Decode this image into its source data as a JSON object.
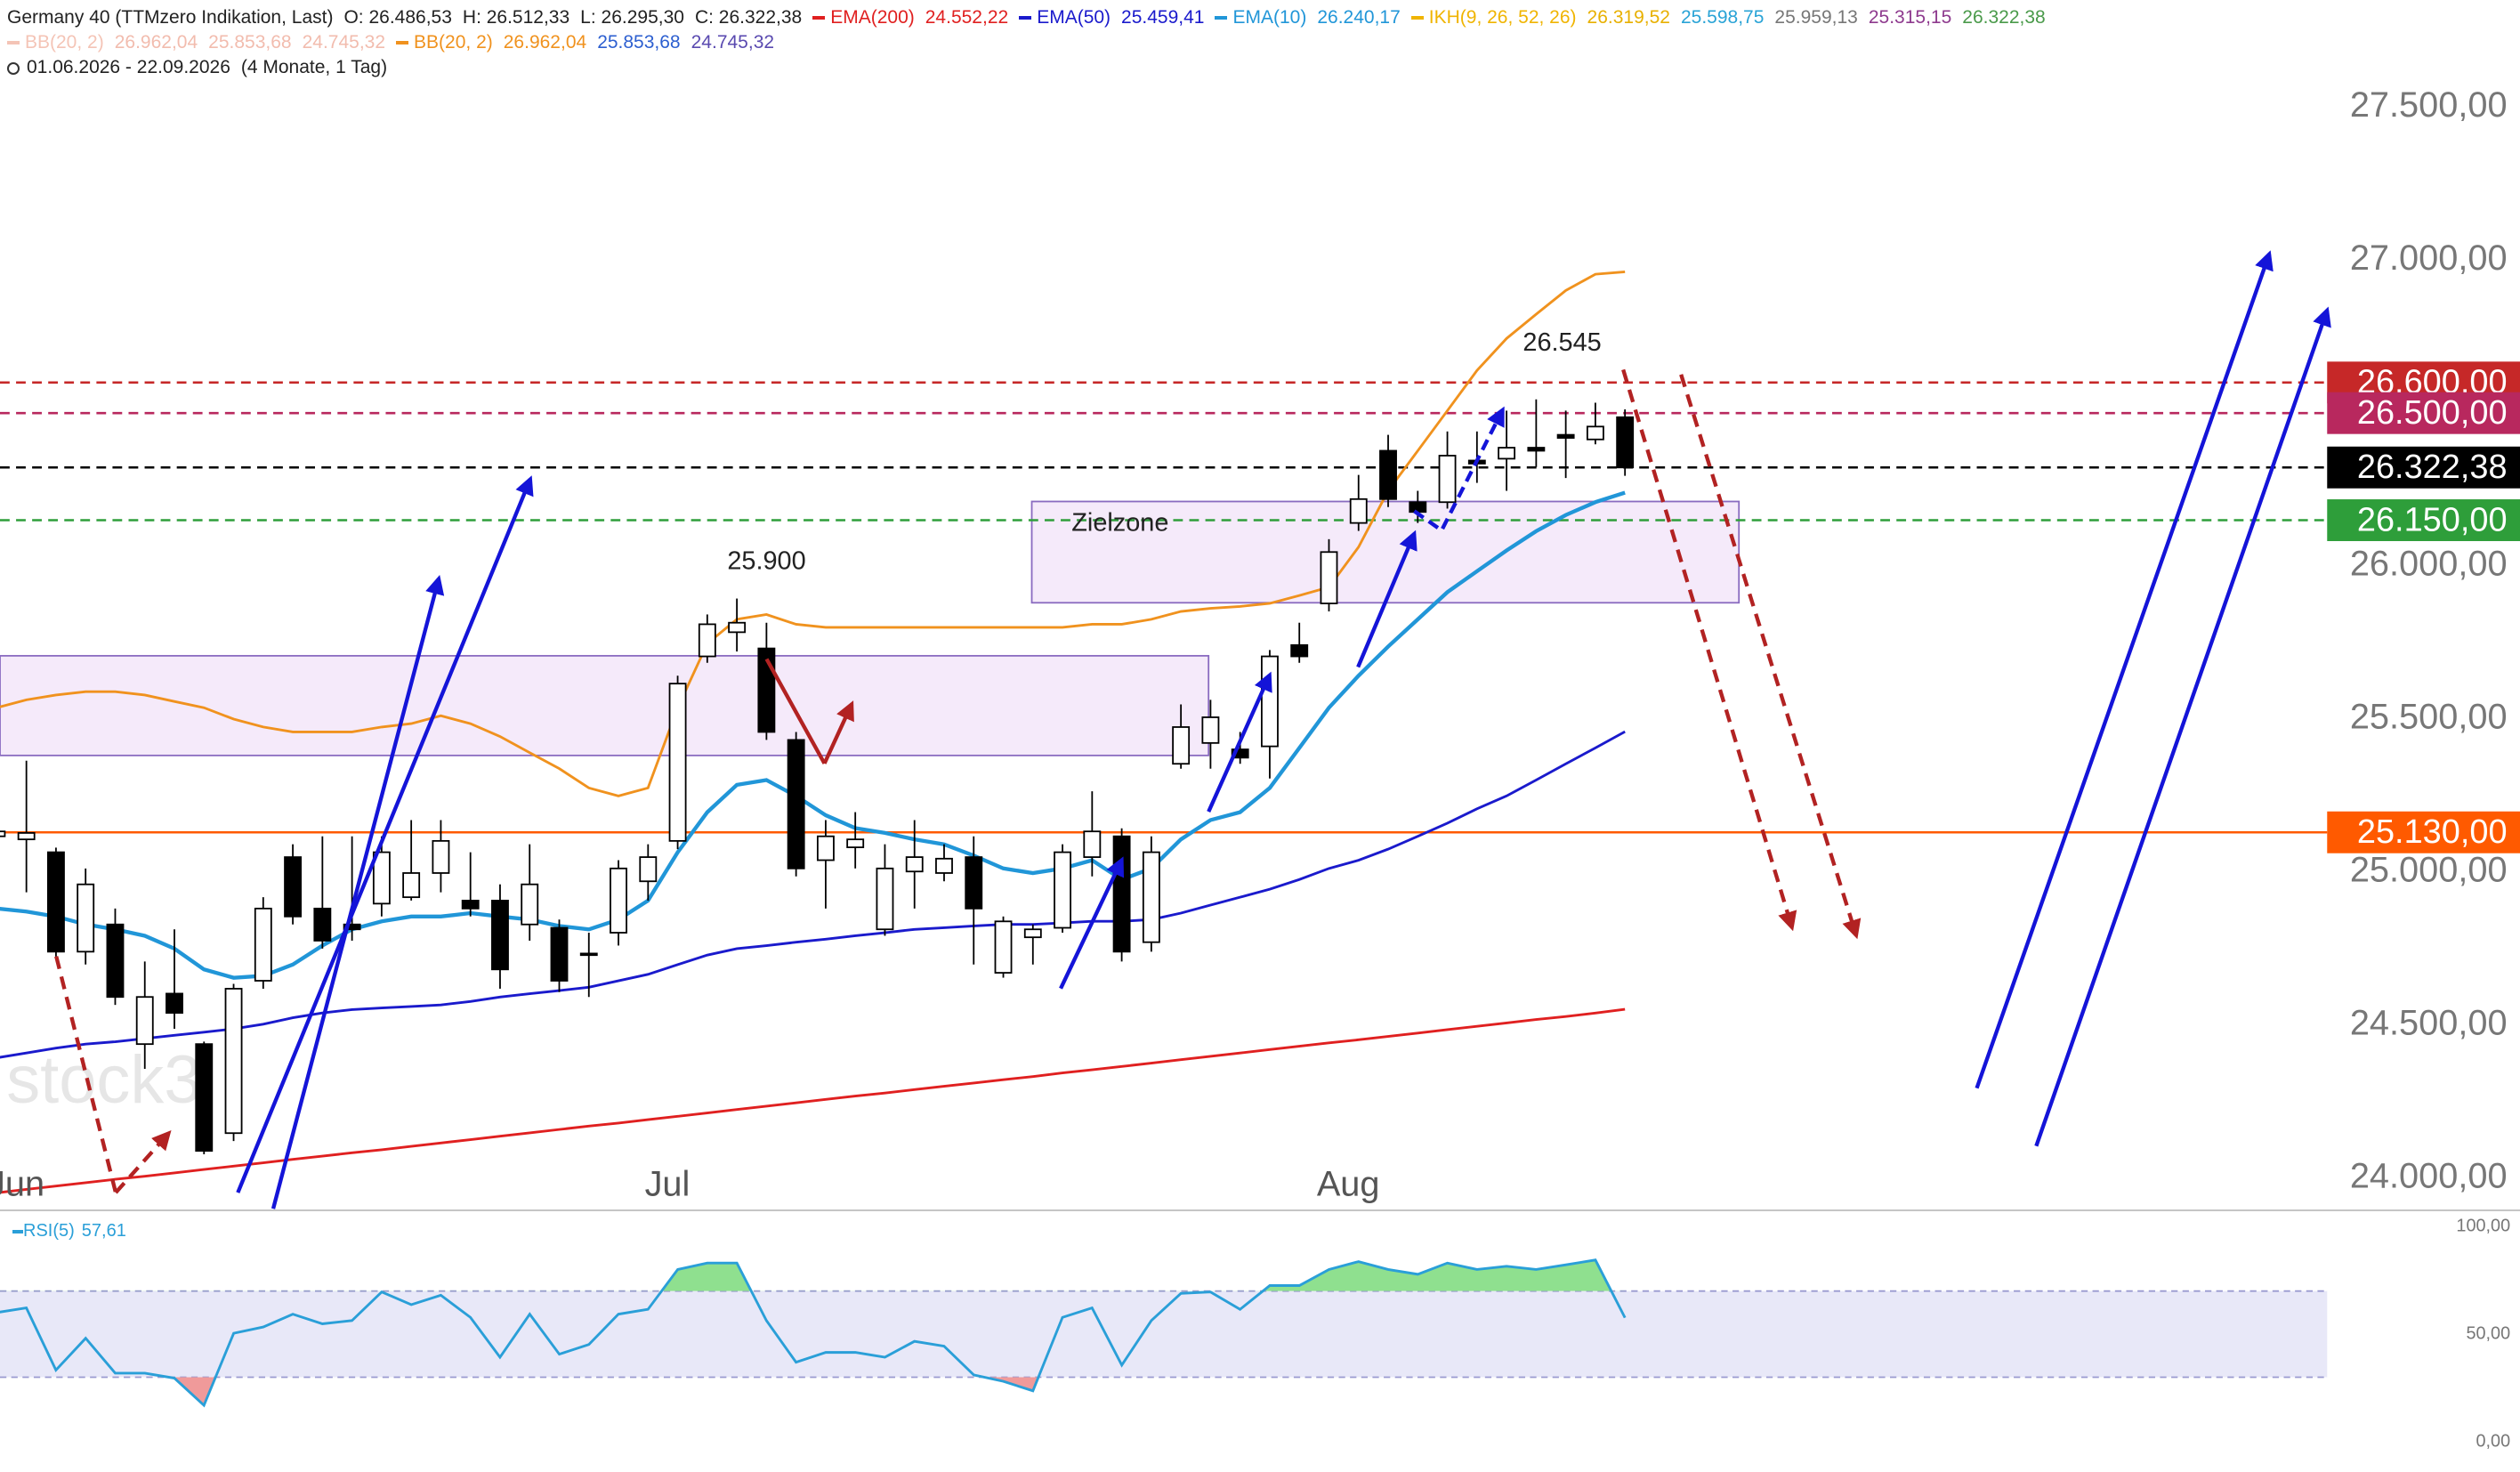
{
  "chart_data": [
    {
      "type": "candlestick",
      "title": "Germany 40 (TTMzero Indikation, Last)",
      "ohlc_labels": [
        "O: 26.486,53",
        "H: 26.512,33",
        "L: 26.295,30",
        "C: 26.322,38"
      ],
      "date_range": "01.06.2026 - 22.09.2026",
      "period": "(4 Monate, 1 Tag)",
      "watermark": "stock3",
      "categories": [
        "Jun",
        null,
        null,
        null,
        null,
        null,
        null,
        null,
        null,
        null,
        null,
        null,
        null,
        null,
        null,
        null,
        null,
        null,
        null,
        null,
        null,
        null,
        "Jul",
        null,
        null,
        null,
        null,
        null,
        null,
        null,
        null,
        null,
        null,
        null,
        null,
        null,
        null,
        null,
        null,
        null,
        null,
        null,
        null,
        null,
        null,
        "Aug",
        null,
        null,
        null,
        null,
        null,
        null,
        null,
        null,
        null,
        null
      ],
      "open": [
        25117,
        25107,
        25065,
        24740,
        24829,
        24438,
        24603,
        24438,
        24147,
        24645,
        25049,
        24881,
        24829,
        24897,
        24918,
        24997,
        24907,
        24907,
        24829,
        24818,
        24734,
        24802,
        24970,
        25102,
        25705,
        25784,
        25731,
        25432,
        25039,
        25081,
        24813,
        25002,
        24997,
        25049,
        24671,
        24787,
        24818,
        25049,
        25117,
        24771,
        25354,
        25422,
        25401,
        25411,
        25742,
        25878,
        26141,
        26377,
        26209,
        26209,
        26345,
        26351,
        26387,
        26429,
        26414,
        26486.53
      ],
      "high": [
        25301,
        25364,
        25080,
        25012,
        24881,
        24708,
        24813,
        24446,
        24635,
        24918,
        25091,
        25117,
        25117,
        25117,
        25170,
        25170,
        25065,
        24960,
        25091,
        24845,
        24802,
        25039,
        25091,
        25642,
        25842,
        25894,
        25815,
        25458,
        25170,
        25196,
        25091,
        25170,
        25091,
        25117,
        24855,
        24829,
        25091,
        25264,
        25143,
        25117,
        25548,
        25563,
        25458,
        25726,
        25815,
        26088,
        26298,
        26429,
        26246,
        26440,
        26440,
        26508,
        26545,
        26508,
        26534,
        26512.33
      ],
      "low": [
        25065,
        24934,
        24724,
        24698,
        24566,
        24357,
        24488,
        24078,
        24121,
        24619,
        24829,
        24750,
        24776,
        24855,
        24907,
        24934,
        24855,
        24619,
        24776,
        24608,
        24592,
        24760,
        24907,
        25075,
        25684,
        25721,
        25432,
        24986,
        24881,
        25012,
        24792,
        24881,
        24970,
        24698,
        24655,
        24698,
        24802,
        24986,
        24708,
        24740,
        25338,
        25338,
        25354,
        25306,
        25684,
        25852,
        26115,
        26193,
        26141,
        26188,
        26272,
        26246,
        26324,
        26288,
        26398,
        26295.3
      ],
      "close": [
        25133,
        25128,
        24740,
        24960,
        24592,
        24592,
        24540,
        24089,
        24619,
        24881,
        24855,
        24776,
        24813,
        25065,
        24997,
        25102,
        24881,
        24682,
        24960,
        24645,
        24729,
        25012,
        25049,
        25616,
        25810,
        25815,
        25458,
        25012,
        25117,
        25107,
        25012,
        25049,
        25044,
        24881,
        24839,
        24813,
        25065,
        25133,
        24740,
        25065,
        25474,
        25506,
        25374,
        25705,
        25705,
        26046,
        26219,
        26219,
        26177,
        26361,
        26335,
        26387,
        26377,
        26419,
        26456,
        26322.38
      ],
      "up_color": "#ffffff",
      "down_color": "#000000",
      "series": [
        {
          "name": "EMA(200)",
          "color": "#e02020",
          "legend_labels": [
            "24.552,22"
          ],
          "legend_label_colors": [
            "#e02020"
          ],
          "values": [
            23952,
            23963,
            23974,
            23985,
            23996,
            24006,
            24017,
            24028,
            24039,
            24050,
            24061,
            24072,
            24083,
            24093,
            24104,
            24115,
            24126,
            24137,
            24148,
            24159,
            24170,
            24180,
            24191,
            24202,
            24213,
            24224,
            24235,
            24246,
            24257,
            24268,
            24278,
            24289,
            24300,
            24311,
            24322,
            24332,
            24344,
            24354,
            24365,
            24376,
            24387,
            24398,
            24409,
            24420,
            24431,
            24442,
            24452,
            24463,
            24474,
            24485,
            24496,
            24507,
            24518,
            24528,
            24539,
            24552
          ]
        },
        {
          "name": "EMA(50)",
          "color": "#1a1acc",
          "legend_labels": [
            "25.459,41"
          ],
          "legend_label_colors": [
            "#1a1acc"
          ],
          "values": [
            24393,
            24409,
            24425,
            24438,
            24446,
            24456,
            24467,
            24477,
            24488,
            24503,
            24524,
            24540,
            24551,
            24556,
            24561,
            24566,
            24577,
            24592,
            24603,
            24613,
            24624,
            24645,
            24666,
            24698,
            24729,
            24750,
            24760,
            24771,
            24781,
            24792,
            24802,
            24813,
            24818,
            24824,
            24829,
            24829,
            24834,
            24839,
            24839,
            24845,
            24866,
            24892,
            24918,
            24944,
            24976,
            25012,
            25039,
            25075,
            25117,
            25160,
            25207,
            25249,
            25301,
            25354,
            25406,
            25459
          ]
        },
        {
          "name": "EMA(10)",
          "color": "#2196d8",
          "legend_labels": [
            "26.240,17"
          ],
          "legend_label_colors": [
            "#2196d8"
          ],
          "values": [
            24881,
            24871,
            24855,
            24829,
            24813,
            24792,
            24750,
            24682,
            24655,
            24661,
            24698,
            24760,
            24813,
            24839,
            24855,
            24855,
            24866,
            24855,
            24845,
            24824,
            24813,
            24845,
            24907,
            25065,
            25196,
            25285,
            25301,
            25249,
            25186,
            25144,
            25128,
            25107,
            25091,
            25054,
            25012,
            24997,
            25012,
            25039,
            24976,
            25012,
            25107,
            25170,
            25196,
            25275,
            25406,
            25537,
            25642,
            25737,
            25826,
            25915,
            25983,
            26051,
            26114,
            26167,
            26209,
            26240
          ]
        },
        {
          "name": "BB(20, 2)",
          "color": "#f0921e",
          "legend_labels": [
            "26.962,04",
            "25.853,68",
            "24.745,32"
          ],
          "legend_label_colors": [
            "#f0921e",
            "#2d5fd0",
            "#5a4ab0"
          ],
          "values": [
            25537,
            25563,
            25579,
            25590,
            25590,
            25579,
            25558,
            25537,
            25500,
            25474,
            25458,
            25458,
            25458,
            25474,
            25485,
            25511,
            25485,
            25443,
            25390,
            25338,
            25275,
            25249,
            25275,
            25537,
            25747,
            25826,
            25842,
            25810,
            25800,
            25800,
            25800,
            25800,
            25800,
            25800,
            25800,
            25800,
            25800,
            25810,
            25810,
            25826,
            25852,
            25862,
            25868,
            25878,
            25904,
            25931,
            26062,
            26246,
            26377,
            26508,
            26639,
            26744,
            26823,
            26901,
            26954,
            26962
          ]
        }
      ],
      "indicators": [
        {
          "name": "IKH(9, 26, 52, 26)",
          "color": "#f0b400",
          "legend_labels": [
            "26.319,52",
            "25.598,75",
            "25.959,13",
            "25.315,15",
            "26.322,38"
          ],
          "legend_label_colors": [
            "#e8b000",
            "#29a3d6",
            "#777777",
            "#8e3a8e",
            "#4a9a4a"
          ]
        },
        {
          "name": "BB(20, 2)",
          "color": "#f4c4b6",
          "legend_labels": [
            "26.962,04",
            "25.853,68",
            "24.745,32"
          ],
          "legend_label_colors": [
            "#f2bcae",
            "#f2bcae",
            "#f2bcae"
          ]
        }
      ],
      "ylim": [
        23900,
        27850
      ],
      "yticks": [
        {
          "value": 24000,
          "label": "24.000,00"
        },
        {
          "value": 24500,
          "label": "24.500,00"
        },
        {
          "value": 25000,
          "label": "25.000,00"
        },
        {
          "value": 25500,
          "label": "25.500,00"
        },
        {
          "value": 26000,
          "label": "26.000,00"
        },
        {
          "value": 26500,
          "label": "26.500,00"
        },
        {
          "value": 27000,
          "label": "27.000,00"
        },
        {
          "value": 27500,
          "label": "27.500,00"
        }
      ],
      "price_levels": [
        {
          "value": 26600,
          "label": "26.600,00",
          "color": "#c62828",
          "dashed": true
        },
        {
          "value": 26500,
          "label": "26.500,00",
          "color": "#b8285e",
          "dashed": true
        },
        {
          "value": 26322.38,
          "label": "26.322,38",
          "color": "#000000",
          "dashed": true
        },
        {
          "value": 26150,
          "label": "26.150,00",
          "color": "#2e9e3a",
          "dashed": true
        },
        {
          "value": 25130,
          "label": "25.130,00",
          "color": "#ff5a00",
          "dashed": false
        }
      ],
      "annotations": [
        {
          "text": "25.900"
        },
        {
          "text": "26.545"
        },
        {
          "text": "Zielzone"
        }
      ]
    },
    {
      "type": "line",
      "series": [
        {
          "name": "RSI(5)",
          "color": "#2a9fd8",
          "legend_labels": [
            "57,61"
          ],
          "legend_label_colors": [
            "#2a9fd8"
          ],
          "values": [
            60.0,
            62.2,
            33.3,
            48.1,
            31.9,
            31.9,
            29.6,
            17.0,
            50.4,
            53.3,
            59.3,
            54.8,
            56.3,
            69.6,
            63.7,
            68.1,
            57.8,
            39.3,
            59.3,
            40.7,
            45.2,
            59.3,
            61.5,
            80.0,
            83.0,
            83.0,
            56.3,
            37.0,
            41.5,
            41.5,
            39.3,
            46.7,
            44.4,
            31.1,
            28.1,
            23.7,
            57.8,
            62.2,
            35.6,
            56.3,
            68.9,
            69.6,
            61.5,
            72.6,
            72.6,
            80.0,
            83.7,
            80.0,
            77.8,
            83.0,
            80.0,
            81.5,
            80.0,
            82.2,
            84.4,
            57.61
          ]
        }
      ],
      "band": [
        30,
        70
      ],
      "ylim": [
        -14,
        106
      ],
      "yticks": [
        {
          "value": 0,
          "label": "0,00"
        },
        {
          "value": 50,
          "label": "50,00"
        },
        {
          "value": 100,
          "label": "100,00"
        }
      ]
    }
  ]
}
